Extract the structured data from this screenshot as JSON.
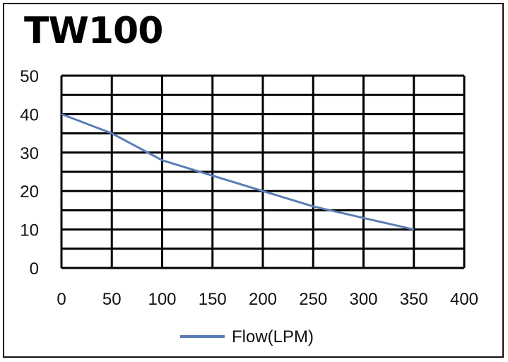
{
  "chart_data": {
    "type": "line",
    "title": "TW100",
    "xlabel": "",
    "ylabel": "",
    "x": [
      0,
      50,
      100,
      150,
      200,
      250,
      300,
      350
    ],
    "series": [
      {
        "name": "Flow(LPM)",
        "values": [
          40,
          35,
          28,
          24,
          20,
          16,
          13,
          10
        ],
        "color": "#5b7db5"
      }
    ],
    "xlim": [
      0,
      400
    ],
    "ylim": [
      0,
      50
    ],
    "x_ticks": [
      0,
      50,
      100,
      150,
      200,
      250,
      300,
      350,
      400
    ],
    "y_ticks": [
      0,
      10,
      20,
      30,
      40,
      50
    ],
    "grid": true,
    "legend_position": "bottom"
  }
}
